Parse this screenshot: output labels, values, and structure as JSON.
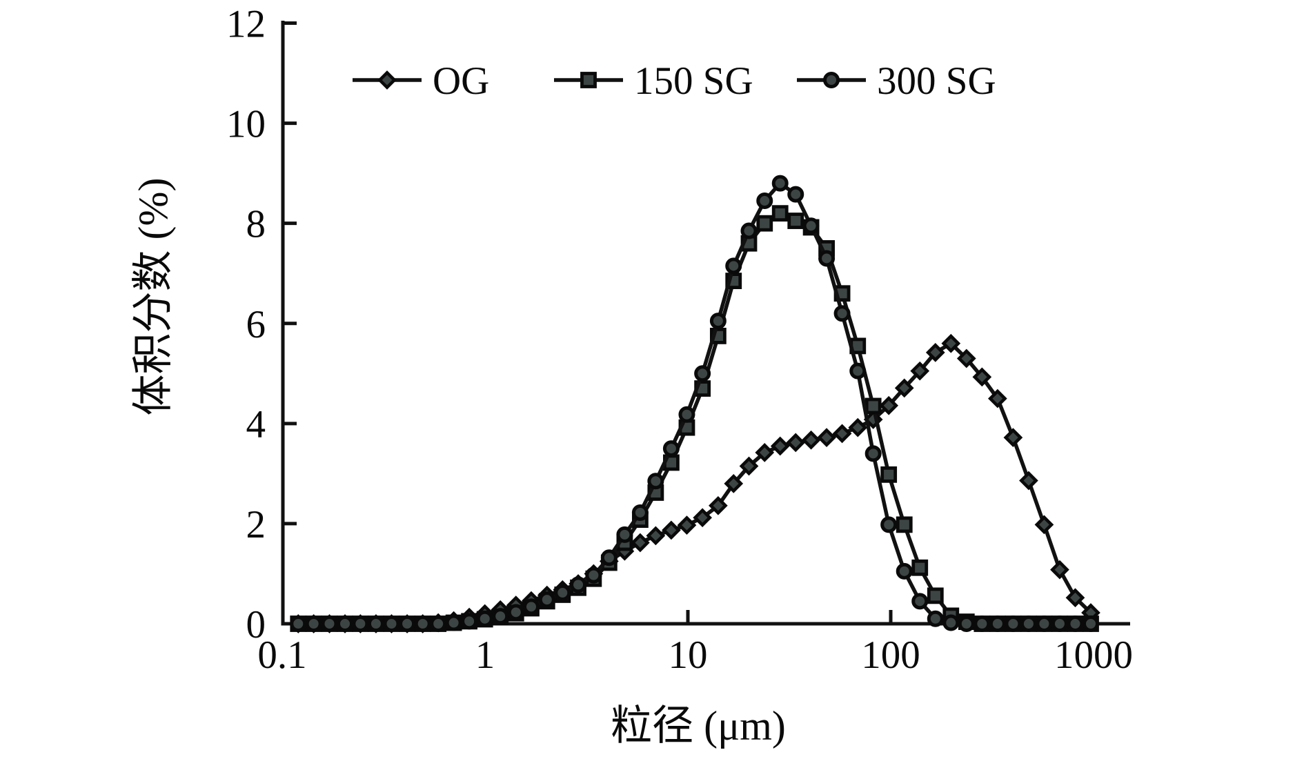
{
  "figure": {
    "background": "#ffffff"
  },
  "chart_data": {
    "type": "line",
    "title": "",
    "xlabel": "粒径 (μm)",
    "ylabel": "体积分数 (%)",
    "x_axis": {
      "scale": "log",
      "range": [
        0.1,
        1300
      ],
      "ticks": [
        0.1,
        1,
        10,
        100,
        1000
      ],
      "tick_labels": [
        "0.1",
        "1",
        "10",
        "100",
        "1000"
      ]
    },
    "y_axis": {
      "scale": "linear",
      "range": [
        0,
        12
      ],
      "ticks": [
        0,
        2,
        4,
        6,
        8,
        10,
        12
      ],
      "tick_labels": [
        "0",
        "2",
        "4",
        "6",
        "8",
        "10",
        "12"
      ]
    },
    "legend": {
      "position": "top-inside",
      "items": [
        {
          "label": "OG",
          "marker": "diamond"
        },
        {
          "label": "150 SG",
          "marker": "square"
        },
        {
          "label": "300 SG",
          "marker": "circle"
        }
      ]
    },
    "colors": {
      "line": "#111111",
      "marker_fill": "#3d4444",
      "marker_stroke": "#0a0a0a"
    },
    "x": [
      0.12,
      0.143,
      0.171,
      0.204,
      0.243,
      0.29,
      0.346,
      0.413,
      0.493,
      0.588,
      0.701,
      0.836,
      0.998,
      1.19,
      1.42,
      1.69,
      2.02,
      2.41,
      2.88,
      3.43,
      4.09,
      4.88,
      5.82,
      6.94,
      8.28,
      9.88,
      11.8,
      14.1,
      16.8,
      20.0,
      23.9,
      28.5,
      34.0,
      40.5,
      48.3,
      57.6,
      68.8,
      82.0,
      97.8,
      116.7,
      139.2,
      166.1,
      198.1,
      236.3,
      281.9,
      336.3,
      401.2,
      478.6,
      570.9,
      681.0,
      812.3,
      969.0
    ],
    "series": [
      {
        "name": "OG",
        "marker": "diamond",
        "values": [
          0,
          0,
          0,
          0,
          0,
          0,
          0,
          0,
          0,
          0.02,
          0.06,
          0.13,
          0.2,
          0.28,
          0.37,
          0.46,
          0.57,
          0.68,
          0.8,
          1.0,
          1.25,
          1.45,
          1.62,
          1.76,
          1.87,
          1.97,
          2.12,
          2.36,
          2.8,
          3.15,
          3.42,
          3.55,
          3.62,
          3.67,
          3.72,
          3.8,
          3.92,
          4.08,
          4.36,
          4.71,
          5.05,
          5.42,
          5.6,
          5.3,
          4.93,
          4.5,
          3.72,
          2.86,
          1.98,
          1.08,
          0.52,
          0.22
        ]
      },
      {
        "name": "150 SG",
        "marker": "square",
        "values": [
          0,
          0,
          0,
          0,
          0,
          0,
          0,
          0,
          0,
          0,
          0.02,
          0.05,
          0.09,
          0.14,
          0.21,
          0.31,
          0.45,
          0.58,
          0.72,
          0.9,
          1.22,
          1.62,
          2.08,
          2.62,
          3.22,
          3.92,
          4.7,
          5.75,
          6.85,
          7.6,
          8.0,
          8.2,
          8.05,
          7.92,
          7.5,
          6.6,
          5.55,
          4.35,
          2.98,
          1.98,
          1.12,
          0.56,
          0.16,
          0.04,
          0,
          0,
          0,
          0,
          0,
          0,
          0,
          0
        ]
      },
      {
        "name": "300 SG",
        "marker": "circle",
        "values": [
          0,
          0,
          0,
          0,
          0,
          0,
          0,
          0,
          0,
          0,
          0.02,
          0.05,
          0.1,
          0.15,
          0.23,
          0.34,
          0.48,
          0.62,
          0.78,
          0.97,
          1.32,
          1.78,
          2.22,
          2.85,
          3.5,
          4.18,
          5.0,
          6.05,
          7.15,
          7.85,
          8.45,
          8.8,
          8.58,
          7.95,
          7.3,
          6.2,
          5.05,
          3.4,
          1.98,
          1.05,
          0.45,
          0.1,
          0.02,
          0,
          0,
          0,
          0,
          0,
          0,
          0,
          0,
          0
        ]
      }
    ]
  }
}
